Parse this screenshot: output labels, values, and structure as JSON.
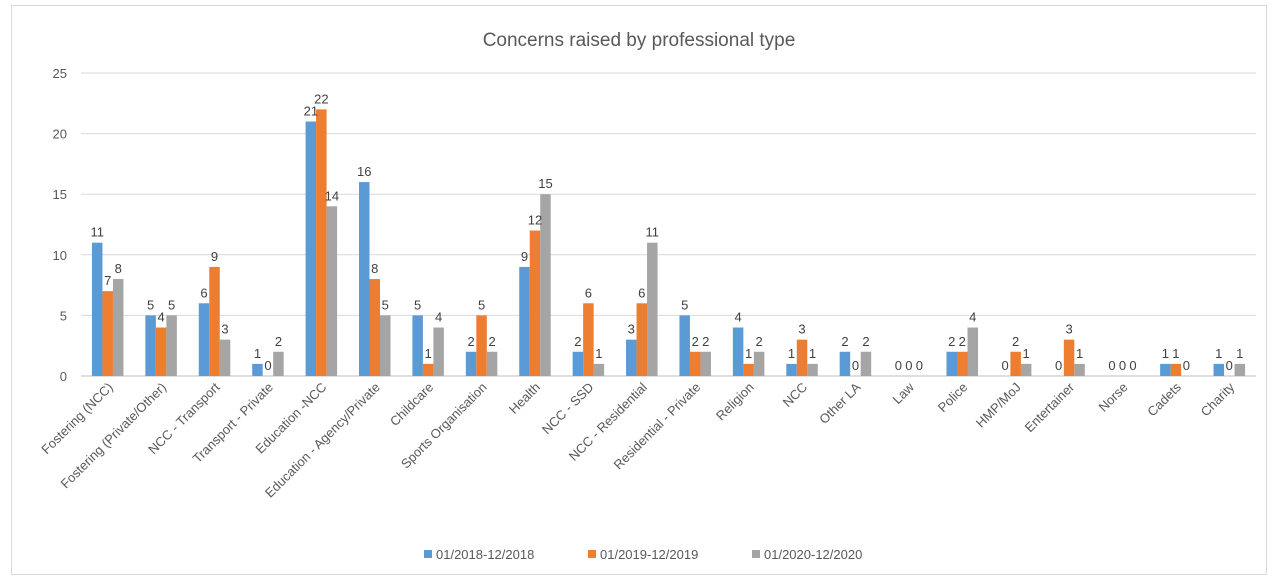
{
  "chart_data": {
    "type": "bar",
    "title": "Concerns raised by professional type",
    "xlabel": "",
    "ylabel": "",
    "ylim": [
      0,
      25
    ],
    "yticks": [
      0,
      5,
      10,
      15,
      20,
      25
    ],
    "grid": true,
    "legend_position": "bottom",
    "categories": [
      "Fostering (NCC)",
      "Fostering (Private/Other)",
      "NCC - Transport",
      "Transport - Private",
      "Education -NCC",
      "Education - Agency/Private",
      "Childcare",
      "Sports Organisation",
      "Health",
      "NCC - SSD",
      "NCC - Residential",
      "Residential - Private",
      "Religion",
      "NCC",
      "Other LA",
      "Law",
      "Police",
      "HMP/MoJ",
      "Entertainer",
      "Norse",
      "Cadets",
      "Charity"
    ],
    "series": [
      {
        "name": "01/2018-12/2018",
        "color": "#5b9bd5",
        "values": [
          11,
          5,
          6,
          1,
          21,
          16,
          5,
          2,
          9,
          2,
          3,
          5,
          4,
          1,
          2,
          0,
          2,
          0,
          0,
          0,
          1,
          1
        ]
      },
      {
        "name": "01/2019-12/2019",
        "color": "#ed7d31",
        "values": [
          7,
          4,
          9,
          0,
          22,
          8,
          1,
          5,
          12,
          6,
          6,
          2,
          1,
          3,
          0,
          0,
          2,
          2,
          3,
          0,
          1,
          0
        ]
      },
      {
        "name": "01/2020-12/2020",
        "color": "#a5a5a5",
        "values": [
          8,
          5,
          3,
          2,
          14,
          5,
          4,
          2,
          15,
          1,
          11,
          2,
          2,
          1,
          2,
          0,
          4,
          1,
          1,
          0,
          0,
          1
        ]
      }
    ]
  },
  "colors": {
    "gridline": "#d9d9d9",
    "axis": "#bfbfbf",
    "text": "#595959"
  }
}
